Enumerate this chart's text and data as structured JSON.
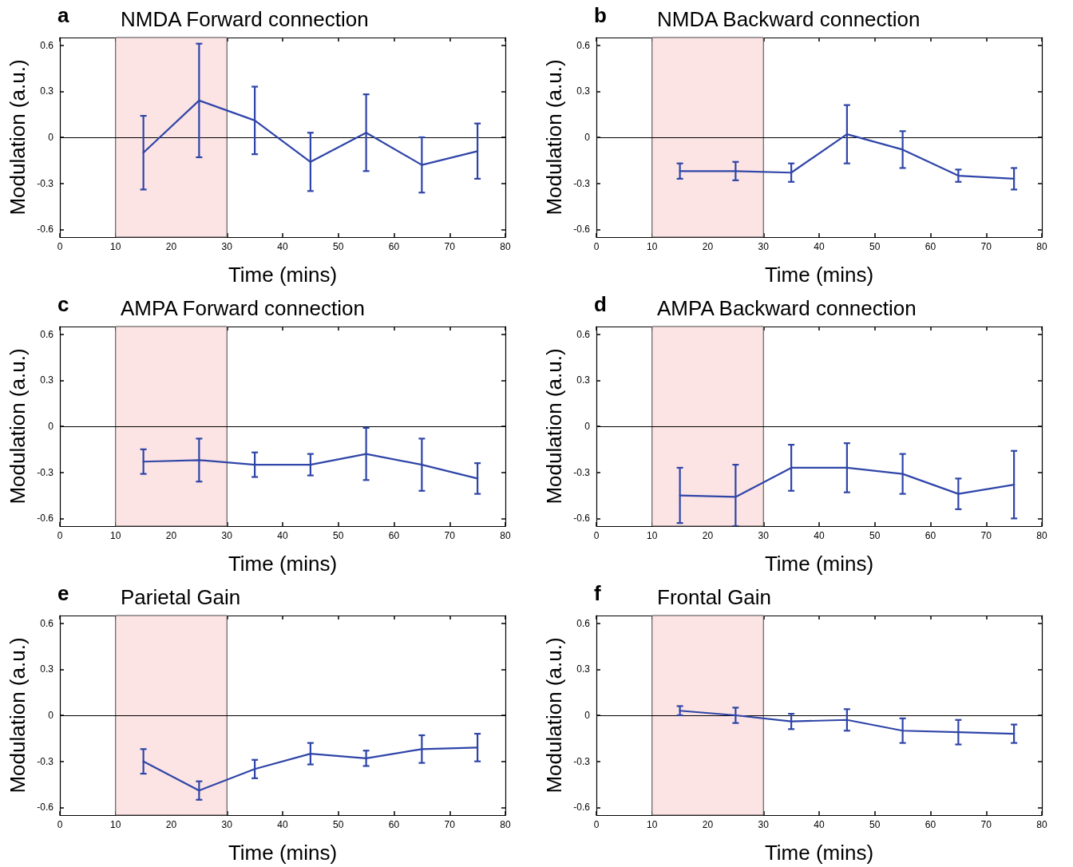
{
  "chart_data": [
    {
      "type": "line",
      "title": "NMDA Forward connection",
      "annotations": [
        "a"
      ],
      "xlabel": "Time (mins)",
      "ylabel": "Modulation (a.u.)",
      "x": [
        15,
        25,
        35,
        45,
        55,
        65,
        75
      ],
      "color": "#2f45a8",
      "marker": "none",
      "grid": false,
      "values": [
        -0.1,
        0.24,
        0.11,
        -0.16,
        0.03,
        -0.18,
        -0.09
      ],
      "errors": [
        0.24,
        0.37,
        0.22,
        0.19,
        0.25,
        0.18,
        0.18
      ],
      "xlim": [
        0,
        80
      ],
      "xticks": [
        0,
        10,
        20,
        30,
        40,
        50,
        60,
        70,
        80
      ],
      "ylim": [
        -0.65,
        0.65
      ],
      "yticks": [
        -0.6,
        -0.3,
        0,
        0.3,
        0.6
      ],
      "bands": [
        {
          "axis": "x",
          "from": 10,
          "to": 30,
          "color": "#fce4e4"
        }
      ],
      "ref_lines": [
        {
          "axis": "y",
          "value": 0,
          "color": "#000000"
        }
      ]
    },
    {
      "type": "line",
      "title": "NMDA Backward connection",
      "annotations": [
        "b"
      ],
      "xlabel": "Time (mins)",
      "ylabel": "Modulation (a.u.)",
      "x": [
        15,
        25,
        35,
        45,
        55,
        65,
        75
      ],
      "color": "#2f45a8",
      "marker": "none",
      "grid": false,
      "values": [
        -0.22,
        -0.22,
        -0.23,
        0.02,
        -0.08,
        -0.25,
        -0.27
      ],
      "errors": [
        0.05,
        0.06,
        0.06,
        0.19,
        0.12,
        0.04,
        0.07
      ],
      "xlim": [
        0,
        80
      ],
      "xticks": [
        0,
        10,
        20,
        30,
        40,
        50,
        60,
        70,
        80
      ],
      "ylim": [
        -0.65,
        0.65
      ],
      "yticks": [
        -0.6,
        -0.3,
        0,
        0.3,
        0.6
      ],
      "bands": [
        {
          "axis": "x",
          "from": 10,
          "to": 30,
          "color": "#fce4e4"
        }
      ],
      "ref_lines": [
        {
          "axis": "y",
          "value": 0,
          "color": "#000000"
        }
      ]
    },
    {
      "type": "line",
      "title": "AMPA Forward connection",
      "annotations": [
        "c"
      ],
      "xlabel": "Time (mins)",
      "ylabel": "Modulation (a.u.)",
      "x": [
        15,
        25,
        35,
        45,
        55,
        65,
        75
      ],
      "color": "#2f45a8",
      "marker": "none",
      "grid": false,
      "values": [
        -0.23,
        -0.22,
        -0.25,
        -0.25,
        -0.18,
        -0.25,
        -0.34
      ],
      "errors": [
        0.08,
        0.14,
        0.08,
        0.07,
        0.17,
        0.17,
        0.1
      ],
      "xlim": [
        0,
        80
      ],
      "xticks": [
        0,
        10,
        20,
        30,
        40,
        50,
        60,
        70,
        80
      ],
      "ylim": [
        -0.65,
        0.65
      ],
      "yticks": [
        -0.6,
        -0.3,
        0,
        0.3,
        0.6
      ],
      "bands": [
        {
          "axis": "x",
          "from": 10,
          "to": 30,
          "color": "#fce4e4"
        }
      ],
      "ref_lines": [
        {
          "axis": "y",
          "value": 0,
          "color": "#000000"
        }
      ]
    },
    {
      "type": "line",
      "title": "AMPA Backward connection",
      "annotations": [
        "d"
      ],
      "xlabel": "Time (mins)",
      "ylabel": "Modulation (a.u.)",
      "x": [
        15,
        25,
        35,
        45,
        55,
        65,
        75
      ],
      "color": "#2f45a8",
      "marker": "none",
      "grid": false,
      "values": [
        -0.45,
        -0.46,
        -0.27,
        -0.27,
        -0.31,
        -0.44,
        -0.38
      ],
      "errors": [
        0.18,
        [
          -0.65,
          -0.25
        ],
        0.15,
        0.16,
        0.13,
        0.1,
        0.22
      ],
      "xlim": [
        0,
        80
      ],
      "xticks": [
        0,
        10,
        20,
        30,
        40,
        50,
        60,
        70,
        80
      ],
      "ylim": [
        -0.65,
        0.65
      ],
      "yticks": [
        -0.6,
        -0.3,
        0,
        0.3,
        0.6
      ],
      "bands": [
        {
          "axis": "x",
          "from": 10,
          "to": 30,
          "color": "#fce4e4"
        }
      ],
      "ref_lines": [
        {
          "axis": "y",
          "value": 0,
          "color": "#000000"
        }
      ]
    },
    {
      "type": "line",
      "title": "Parietal Gain",
      "annotations": [
        "e"
      ],
      "xlabel": "Time (mins)",
      "ylabel": "Modulation (a.u.)",
      "x": [
        15,
        25,
        35,
        45,
        55,
        65,
        75
      ],
      "color": "#2f45a8",
      "marker": "none",
      "grid": false,
      "values": [
        -0.3,
        -0.49,
        -0.35,
        -0.25,
        -0.28,
        -0.22,
        -0.21
      ],
      "errors": [
        0.08,
        0.06,
        0.06,
        0.07,
        0.05,
        0.09,
        0.09
      ],
      "xlim": [
        0,
        80
      ],
      "xticks": [
        0,
        10,
        20,
        30,
        40,
        50,
        60,
        70,
        80
      ],
      "ylim": [
        -0.65,
        0.65
      ],
      "yticks": [
        -0.6,
        -0.3,
        0,
        0.3,
        0.6
      ],
      "bands": [
        {
          "axis": "x",
          "from": 10,
          "to": 30,
          "color": "#fce4e4"
        }
      ],
      "ref_lines": [
        {
          "axis": "y",
          "value": 0,
          "color": "#000000"
        }
      ]
    },
    {
      "type": "line",
      "title": "Frontal Gain",
      "annotations": [
        "f"
      ],
      "xlabel": "Time (mins)",
      "ylabel": "Modulation (a.u.)",
      "x": [
        15,
        25,
        35,
        45,
        55,
        65,
        75
      ],
      "color": "#2f45a8",
      "marker": "none",
      "grid": false,
      "values": [
        0.03,
        0.0,
        -0.04,
        -0.03,
        -0.1,
        -0.11,
        -0.12
      ],
      "errors": [
        0.03,
        0.05,
        0.05,
        0.07,
        0.08,
        0.08,
        0.06
      ],
      "xlim": [
        0,
        80
      ],
      "xticks": [
        0,
        10,
        20,
        30,
        40,
        50,
        60,
        70,
        80
      ],
      "ylim": [
        -0.65,
        0.65
      ],
      "yticks": [
        -0.6,
        -0.3,
        0,
        0.3,
        0.6
      ],
      "bands": [
        {
          "axis": "x",
          "from": 10,
          "to": 30,
          "color": "#fce4e4"
        }
      ],
      "ref_lines": [
        {
          "axis": "y",
          "value": 0,
          "color": "#000000"
        }
      ]
    }
  ]
}
